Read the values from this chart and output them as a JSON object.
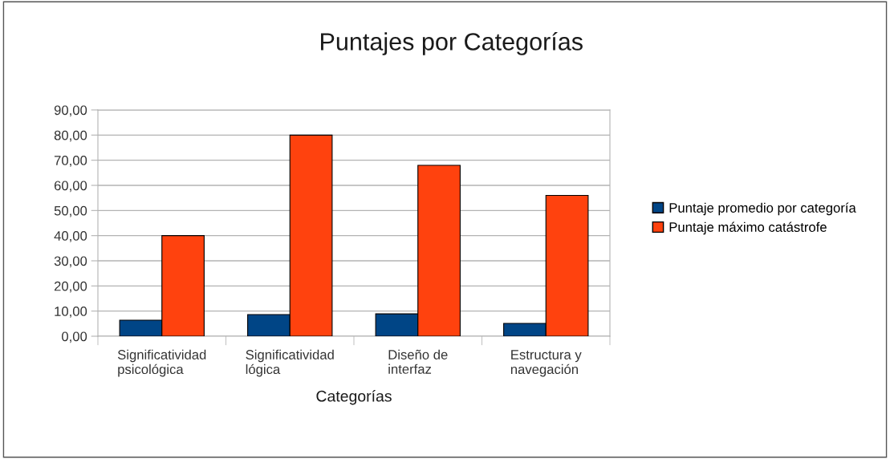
{
  "chart_data": {
    "type": "bar",
    "title": "Puntajes por Categorías",
    "xlabel": "Categorías",
    "categories": [
      "Significatividad\npsicológica",
      "Significatividad\nlógica",
      "Diseño de\ninterfaz",
      "Estructura y\nnavegación"
    ],
    "series": [
      {
        "name": "Puntaje promedio por categoría",
        "color": "#004586",
        "values": [
          6.4,
          8.6,
          8.9,
          5.1
        ]
      },
      {
        "name": "Puntaje máximo catástrofe",
        "color": "#ff420e",
        "values": [
          40,
          80,
          68,
          56
        ]
      }
    ],
    "ylim": [
      0,
      90
    ],
    "yticks": [
      {
        "value": 0,
        "label": "0,00"
      },
      {
        "value": 10,
        "label": "10,00"
      },
      {
        "value": 20,
        "label": "20,00"
      },
      {
        "value": 30,
        "label": "30,00"
      },
      {
        "value": 40,
        "label": "40,00"
      },
      {
        "value": 50,
        "label": "50,00"
      },
      {
        "value": 60,
        "label": "60,00"
      },
      {
        "value": 70,
        "label": "70,00"
      },
      {
        "value": 80,
        "label": "80,00"
      },
      {
        "value": 90,
        "label": "90,00"
      }
    ],
    "grid": "y",
    "legend": "right"
  }
}
